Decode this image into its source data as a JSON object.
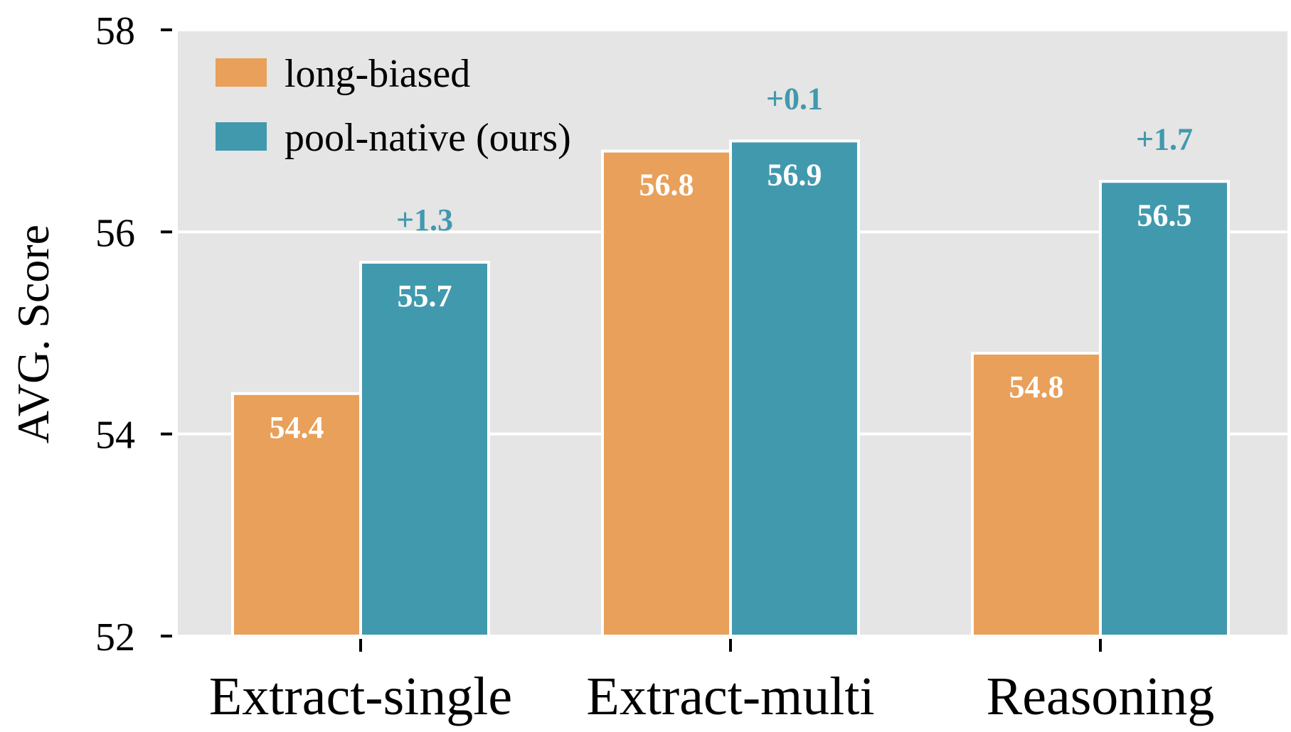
{
  "colors": {
    "plot_background": "#e5e5e5",
    "gridline": "#ffffff",
    "long_biased": "#e8a05a",
    "pool_native": "#4199ae",
    "delta_text": "#4199ae"
  },
  "chart_data": {
    "type": "bar",
    "title": "",
    "xlabel": "",
    "ylabel": "AVG. Score",
    "ylim": [
      52,
      58
    ],
    "yticks": [
      52,
      54,
      56,
      58
    ],
    "categories": [
      "Extract-single",
      "Extract-multi",
      "Reasoning"
    ],
    "series": [
      {
        "name": "long-biased",
        "values": [
          54.4,
          56.8,
          54.8
        ],
        "value_labels": [
          "54.4",
          "56.8",
          "54.8"
        ]
      },
      {
        "name": "pool-native (ours)",
        "values": [
          55.7,
          56.9,
          56.5
        ],
        "value_labels": [
          "55.7",
          "56.9",
          "56.5"
        ]
      }
    ],
    "annotations": [
      "+1.3",
      "+0.1",
      "+1.7"
    ],
    "grid": true,
    "legend_position": "top-left"
  }
}
